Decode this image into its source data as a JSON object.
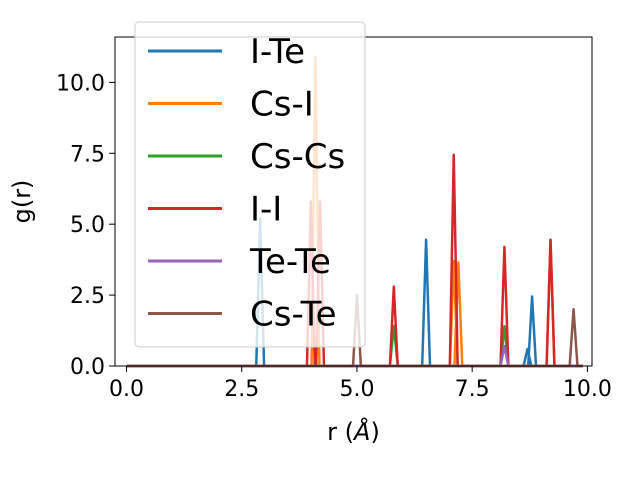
{
  "chart_data": {
    "type": "line",
    "title": "",
    "xlabel": "r (",
    "xlabel_unit": "Å",
    "xlabel_close": ")",
    "ylabel": "g(r)",
    "xlim": [
      -0.25,
      10.1
    ],
    "ylim": [
      0,
      11.6
    ],
    "x_ticks": [
      0.0,
      2.5,
      5.0,
      7.5,
      10.0
    ],
    "x_tick_labels": [
      "0.0",
      "2.5",
      "5.0",
      "7.5",
      "10.0"
    ],
    "y_ticks": [
      0.0,
      2.5,
      5.0,
      7.5,
      10.0
    ],
    "y_tick_labels": [
      "0.0",
      "2.5",
      "5.0",
      "7.5",
      "10.0"
    ],
    "grid": false,
    "legend_position": "upper-left",
    "series": [
      {
        "name": "I-Te",
        "color": "#1f77b4",
        "peaks": [
          {
            "x": 2.9,
            "y": 5.2
          },
          {
            "x": 6.5,
            "y": 4.45
          },
          {
            "x": 8.7,
            "y": 0.6
          },
          {
            "x": 8.8,
            "y": 2.45
          }
        ]
      },
      {
        "name": "Cs-I",
        "color": "#ff7f0e",
        "peaks": [
          {
            "x": 4.1,
            "y": 10.9
          },
          {
            "x": 7.1,
            "y": 3.7
          },
          {
            "x": 7.2,
            "y": 3.65
          },
          {
            "x": 9.2,
            "y": 4.45
          }
        ]
      },
      {
        "name": "Cs-Cs",
        "color": "#2ca02c",
        "peaks": [
          {
            "x": 5.8,
            "y": 1.4
          },
          {
            "x": 8.2,
            "y": 1.4
          }
        ]
      },
      {
        "name": "I-I",
        "color": "#d62728",
        "peaks": [
          {
            "x": 4.0,
            "y": 5.8
          },
          {
            "x": 4.2,
            "y": 5.8
          },
          {
            "x": 5.8,
            "y": 2.8
          },
          {
            "x": 7.1,
            "y": 7.45
          },
          {
            "x": 8.2,
            "y": 4.2
          },
          {
            "x": 9.2,
            "y": 4.45
          }
        ]
      },
      {
        "name": "Te-Te",
        "color": "#9467bd",
        "peaks": [
          {
            "x": 8.2,
            "y": 0.7
          }
        ]
      },
      {
        "name": "Cs-Te",
        "color": "#8c564b",
        "peaks": [
          {
            "x": 5.0,
            "y": 2.5
          },
          {
            "x": 9.7,
            "y": 2.0
          }
        ]
      }
    ]
  }
}
